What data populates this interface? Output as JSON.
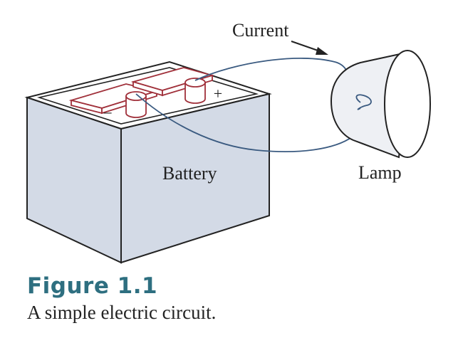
{
  "labels": {
    "current": "Current",
    "battery": "Battery",
    "lamp": "Lamp",
    "positive_terminal": "+",
    "negative_terminal": "–"
  },
  "figure": {
    "label": "Figure 1.1",
    "caption": "A simple electric circuit."
  },
  "colors": {
    "battery_face": "#d3dae6",
    "terminal": "#a0303a",
    "wire": "#3a5a80",
    "figure_label": "#2e6f80"
  }
}
